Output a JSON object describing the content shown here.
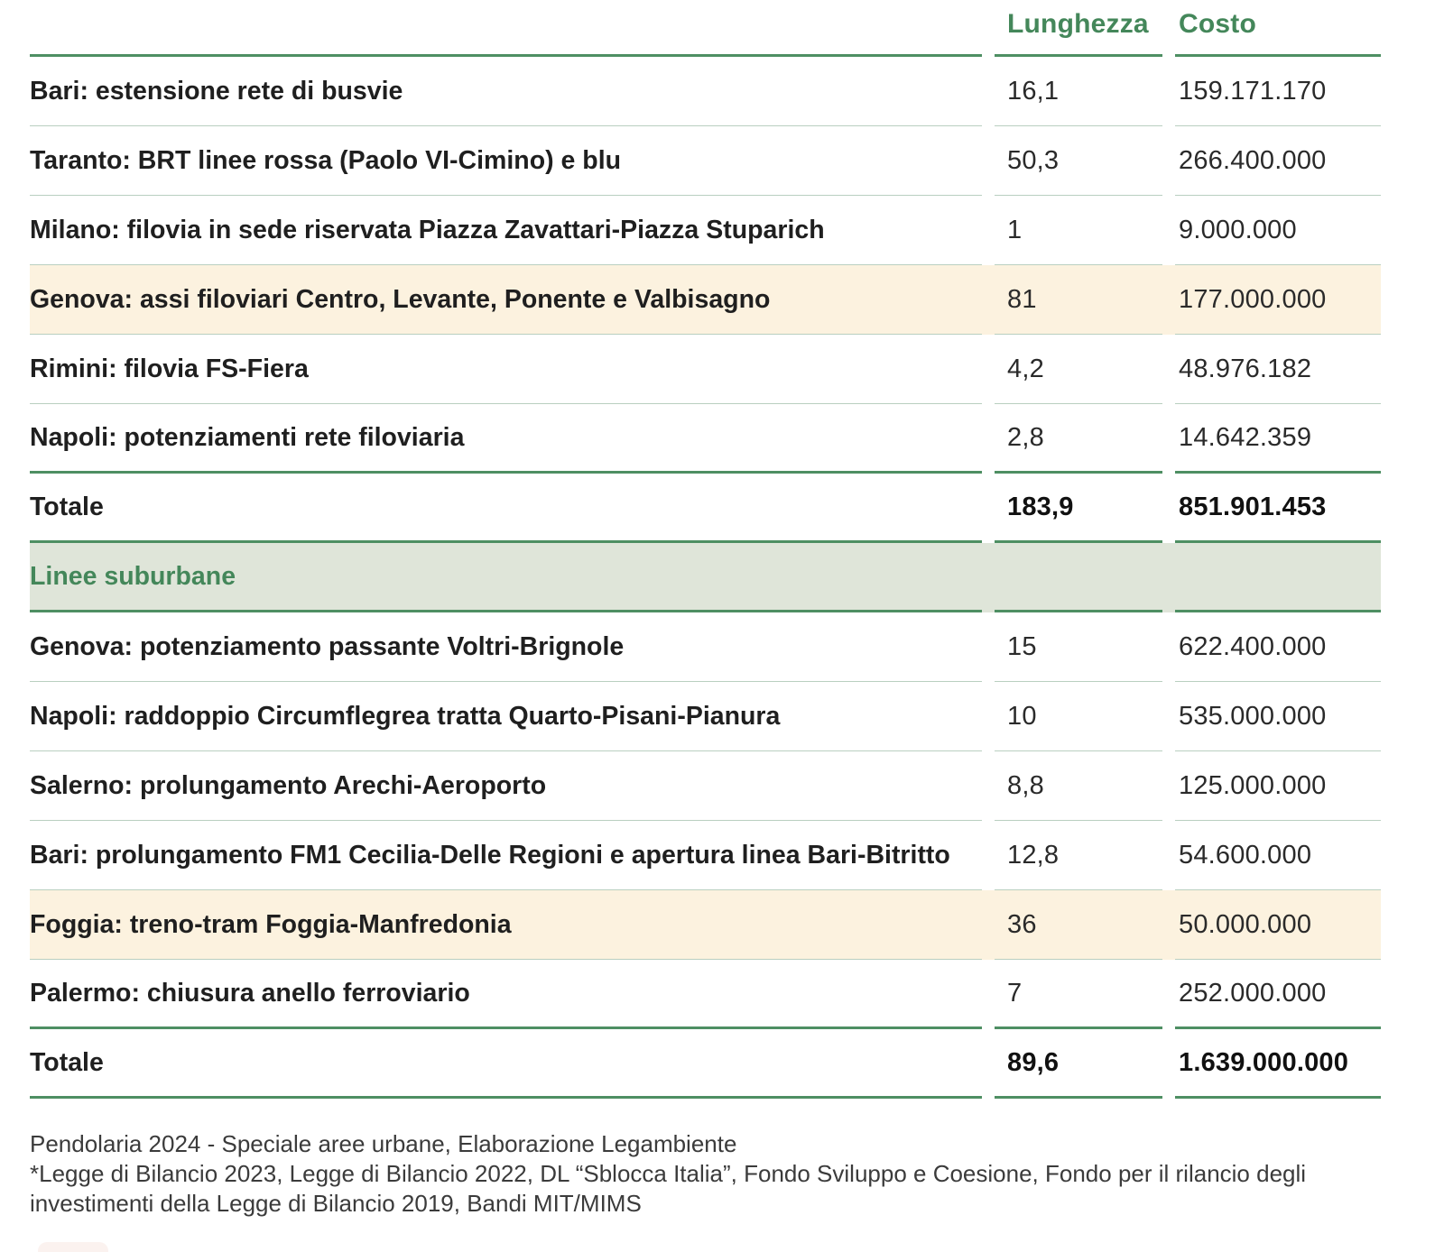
{
  "colors": {
    "header_green": "#44875a",
    "strong_line": "#4e8f63",
    "thin_line": "#b9cfc0",
    "band_bg": "#dfe5d9",
    "highlight_bg": "#fcf2df",
    "text_dark": "#1f1f1f",
    "footer_text": "#3b3b3b"
  },
  "table": {
    "headers": {
      "length": "Lunghezza",
      "cost": "Costo"
    },
    "rows": [
      {
        "type": "data",
        "label": "Bari: estensione rete di busvie",
        "length": "16,1",
        "cost": "159.171.170"
      },
      {
        "type": "data",
        "label": "Taranto: BRT linee rossa (Paolo VI-Cimino) e blu",
        "length": "50,3",
        "cost": "266.400.000"
      },
      {
        "type": "data",
        "label": "Milano: filovia in sede riservata Piazza Zavattari-Piazza Stuparich",
        "length": "1",
        "cost": "9.000.000"
      },
      {
        "type": "data",
        "highlight": true,
        "label": "Genova: assi filoviari Centro, Levante, Ponente e Valbisagno",
        "length": "81",
        "cost": "177.000.000"
      },
      {
        "type": "data",
        "label": "Rimini: filovia FS-Fiera",
        "length": "4,2",
        "cost": "48.976.182"
      },
      {
        "type": "data",
        "strong_bottom": true,
        "label": "Napoli: potenziamenti rete filoviaria",
        "length": "2,8",
        "cost": "14.642.359"
      },
      {
        "type": "total",
        "strong_bottom": true,
        "label": "Totale",
        "length": "183,9",
        "cost": "851.901.453"
      },
      {
        "type": "section",
        "strong_bottom": true,
        "label": "Linee suburbane"
      },
      {
        "type": "data",
        "label": "Genova: potenziamento passante Voltri-Brignole",
        "length": "15",
        "cost": "622.400.000"
      },
      {
        "type": "data",
        "label": "Napoli: raddoppio Circumflegrea tratta Quarto-Pisani-Pianura",
        "length": "10",
        "cost": "535.000.000"
      },
      {
        "type": "data",
        "label": "Salerno: prolungamento Arechi-Aeroporto",
        "length": "8,8",
        "cost": "125.000.000"
      },
      {
        "type": "data",
        "label": "Bari: prolungamento FM1 Cecilia-Delle Regioni e apertura linea Bari-Bitritto",
        "length": "12,8",
        "cost": "54.600.000"
      },
      {
        "type": "data",
        "highlight": true,
        "label": "Foggia: treno-tram Foggia-Manfredonia",
        "length": "36",
        "cost": "50.000.000"
      },
      {
        "type": "data",
        "strong_bottom": true,
        "label": "Palermo: chiusura anello ferroviario",
        "length": "7",
        "cost": "252.000.000"
      },
      {
        "type": "total",
        "strong_bottom": true,
        "label": "Totale",
        "length": "89,6",
        "cost": "1.639.000.000"
      }
    ]
  },
  "footer": {
    "source": "Pendolaria 2024 - Speciale aree urbane, Elaborazione Legambiente",
    "note": "*Legge di Bilancio 2023, Legge di Bilancio 2022, DL “Sblocca Italia”, Fondo Sviluppo e Coesione, Fondo per il rilancio degli investimenti della Legge di Bilancio 2019, Bandi MIT/MIMS"
  },
  "chart_data": {
    "type": "table",
    "columns": [
      "",
      "Lunghezza",
      "Costo"
    ],
    "sections": [
      {
        "name": "",
        "rows": [
          [
            "Bari: estensione rete di busvie",
            16.1,
            159171170
          ],
          [
            "Taranto: BRT linee rossa (Paolo VI-Cimino) e blu",
            50.3,
            266400000
          ],
          [
            "Milano: filovia in sede riservata Piazza Zavattari-Piazza Stuparich",
            1,
            9000000
          ],
          [
            "Genova: assi filoviari Centro, Levante, Ponente e Valbisagno",
            81,
            177000000
          ],
          [
            "Rimini: filovia FS-Fiera",
            4.2,
            48976182
          ],
          [
            "Napoli: potenziamenti rete filoviaria",
            2.8,
            14642359
          ]
        ],
        "total": {
          "label": "Totale",
          "lunghezza": 183.9,
          "costo": 851901453
        }
      },
      {
        "name": "Linee suburbane",
        "rows": [
          [
            "Genova: potenziamento passante Voltri-Brignole",
            15,
            622400000
          ],
          [
            "Napoli: raddoppio Circumflegrea tratta Quarto-Pisani-Pianura",
            10,
            535000000
          ],
          [
            "Salerno: prolungamento Arechi-Aeroporto",
            8.8,
            125000000
          ],
          [
            "Bari: prolungamento FM1 Cecilia-Delle Regioni e apertura linea Bari-Bitritto",
            12.8,
            54600000
          ],
          [
            "Foggia: treno-tram Foggia-Manfredonia",
            36,
            50000000
          ],
          [
            "Palermo: chiusura anello ferroviario",
            7,
            252000000
          ]
        ],
        "total": {
          "label": "Totale",
          "lunghezza": 89.6,
          "costo": 1639000000
        }
      }
    ],
    "highlighted_rows": [
      "Genova: assi filoviari Centro, Levante, Ponente e Valbisagno",
      "Foggia: treno-tram Foggia-Manfredonia"
    ]
  }
}
